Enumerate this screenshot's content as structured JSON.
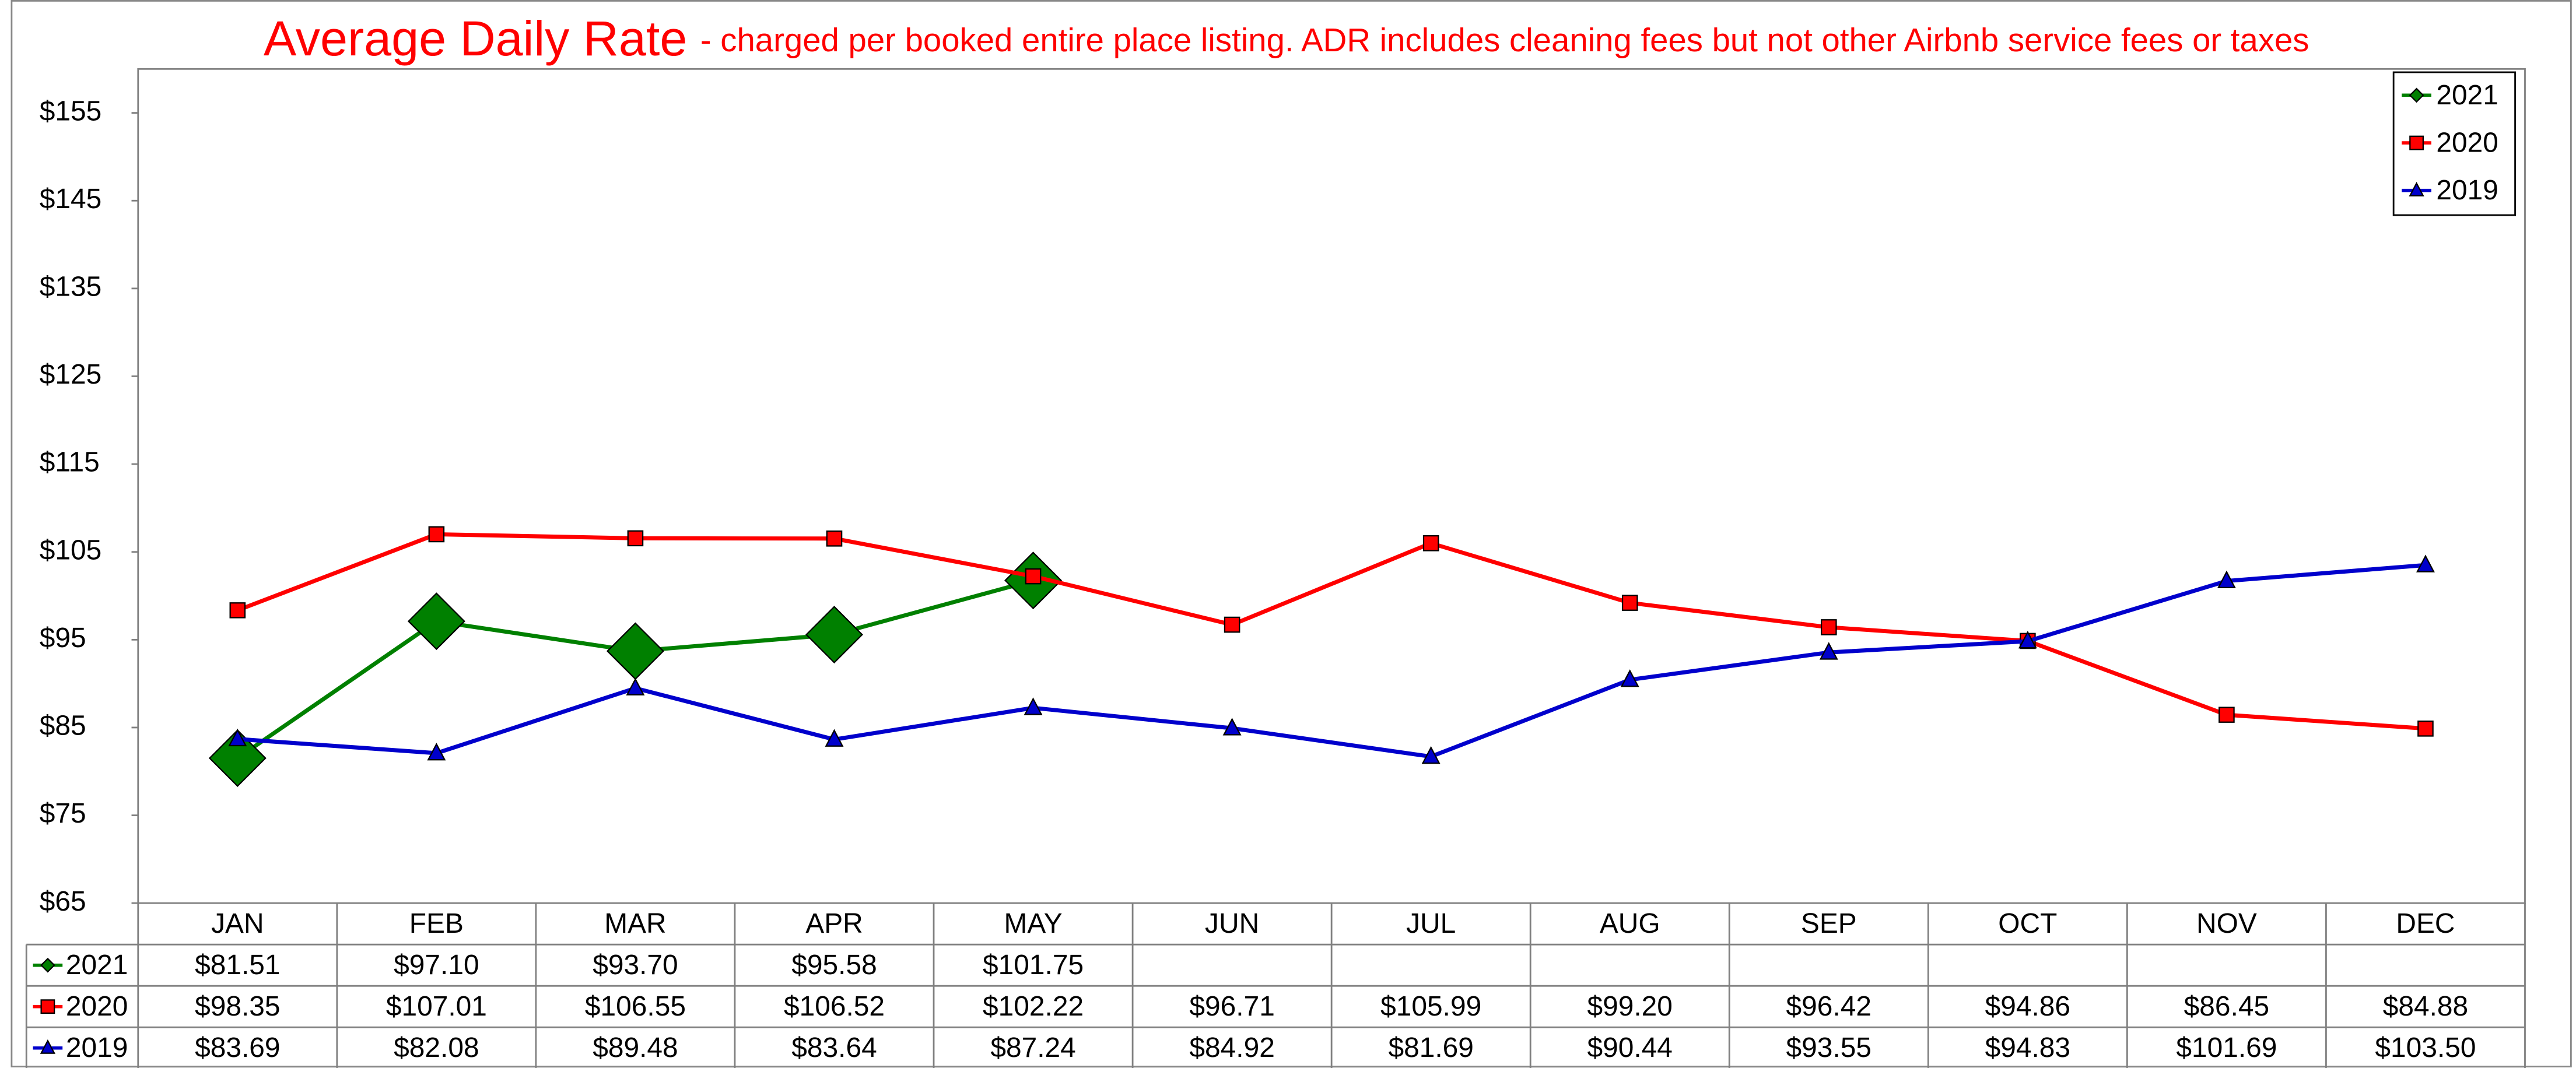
{
  "chart_data": {
    "type": "line",
    "title": "Average Daily Rate",
    "subtitle": "- charged per booked entire place listing. ADR includes cleaning fees but not other Airbnb service fees or taxes",
    "categories": [
      "JAN",
      "FEB",
      "MAR",
      "APR",
      "MAY",
      "JUN",
      "JUL",
      "AUG",
      "SEP",
      "OCT",
      "NOV",
      "DEC"
    ],
    "ylim": [
      65,
      160
    ],
    "yticks": [
      {
        "value": 65,
        "label": "$65"
      },
      {
        "value": 75,
        "label": "$75"
      },
      {
        "value": 85,
        "label": "$85"
      },
      {
        "value": 95,
        "label": "$95"
      },
      {
        "value": 105,
        "label": "$105"
      },
      {
        "value": 115,
        "label": "$115"
      },
      {
        "value": 125,
        "label": "$125"
      },
      {
        "value": 135,
        "label": "$135"
      },
      {
        "value": 145,
        "label": "$145"
      },
      {
        "value": 155,
        "label": "$155"
      }
    ],
    "grid": false,
    "legend": "top-right",
    "series": [
      {
        "name": "2021",
        "color": "#008000",
        "marker": "diamond",
        "values": [
          81.51,
          97.1,
          93.7,
          95.58,
          101.75,
          null,
          null,
          null,
          null,
          null,
          null,
          null
        ],
        "value_labels": [
          "$81.51",
          "$97.10",
          "$93.70",
          "$95.58",
          "$101.75",
          null,
          null,
          null,
          null,
          null,
          null,
          null
        ]
      },
      {
        "name": "2020",
        "color": "#ff0000",
        "marker": "square",
        "values": [
          98.35,
          107.01,
          106.55,
          106.52,
          102.22,
          96.71,
          105.99,
          99.2,
          96.42,
          94.86,
          86.45,
          84.88
        ],
        "value_labels": [
          "$98.35",
          "$107.01",
          "$106.55",
          "$106.52",
          "$102.22",
          "$96.71",
          "$105.99",
          "$99.20",
          "$96.42",
          "$94.86",
          "$86.45",
          "$84.88"
        ]
      },
      {
        "name": "2019",
        "color": "#0000cc",
        "marker": "triangle",
        "values": [
          83.69,
          82.08,
          89.48,
          83.64,
          87.24,
          84.92,
          81.69,
          90.44,
          93.55,
          94.83,
          101.69,
          103.5
        ],
        "value_labels": [
          "$83.69",
          "$82.08",
          "$89.48",
          "$83.64",
          "$87.24",
          "$84.92",
          "$81.69",
          "$90.44",
          "$93.55",
          "$94.83",
          "$101.69",
          "$103.50"
        ]
      }
    ]
  }
}
